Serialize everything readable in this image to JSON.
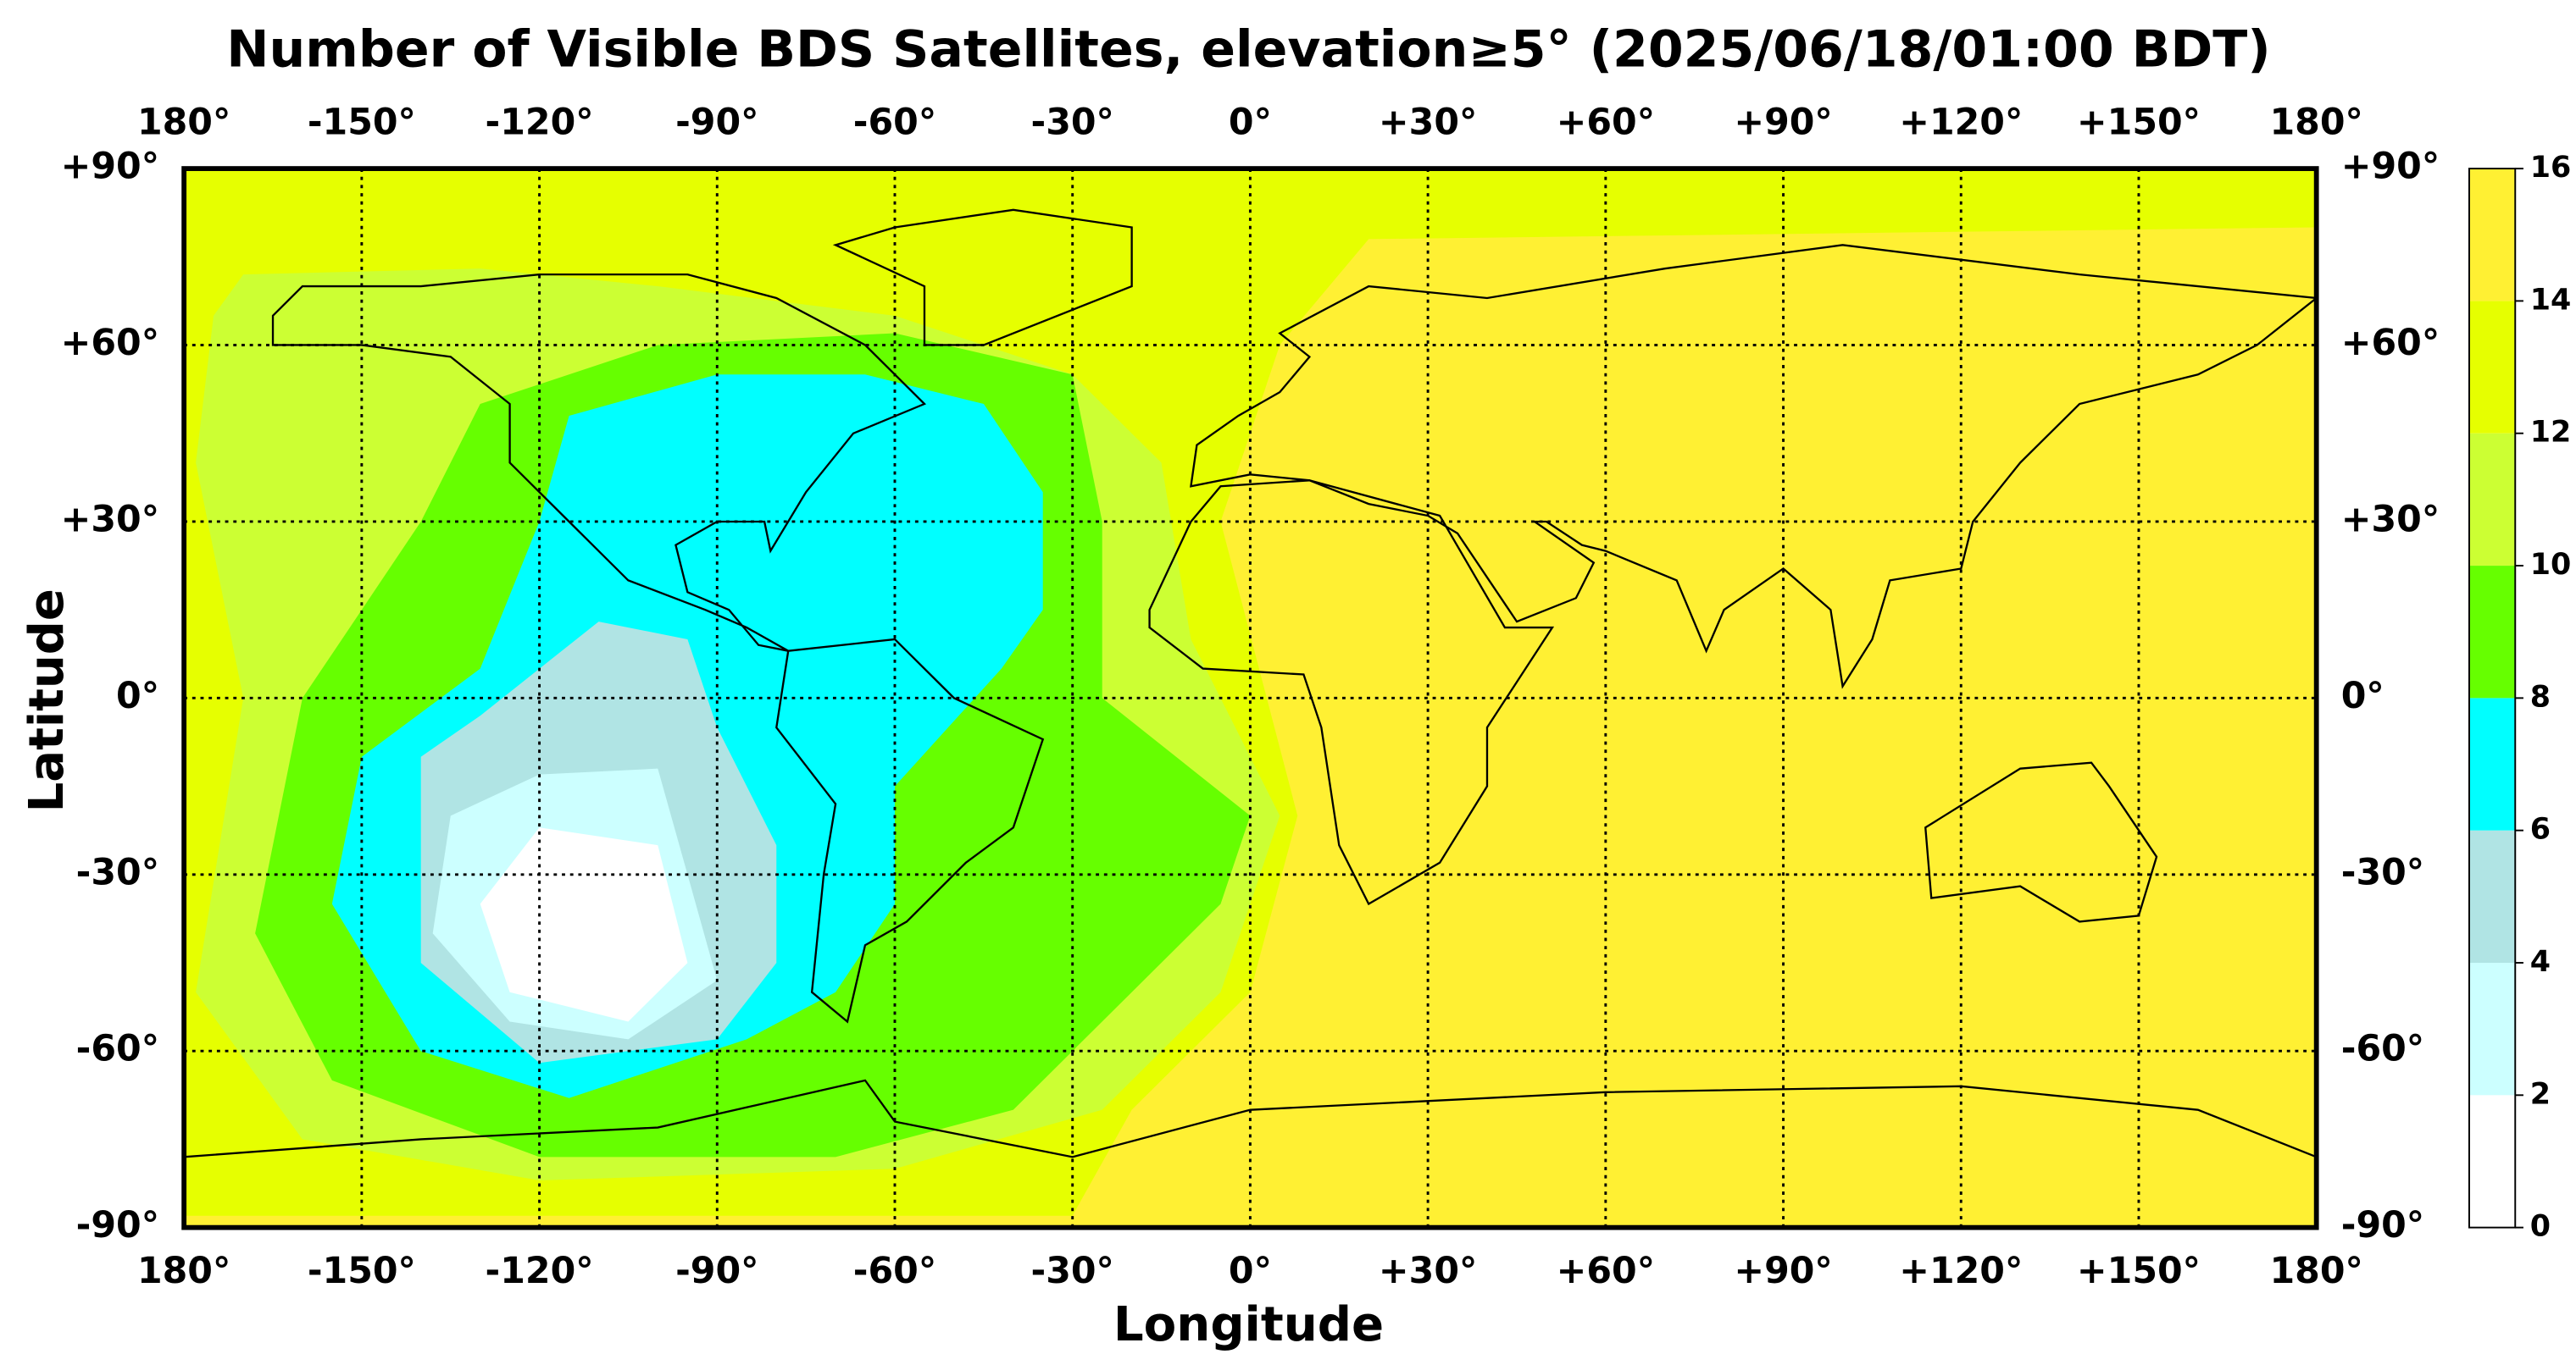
{
  "chart_data": {
    "type": "map",
    "title": "Number of Visible BDS Satellites, elevation≥5° (2025/06/18/01:00 BDT)",
    "xlabel": "Longitude",
    "ylabel": "Latitude",
    "xlim": [
      -180,
      180
    ],
    "ylim": [
      -90,
      90
    ],
    "xticks": [
      {
        "value": -180,
        "label": "180°"
      },
      {
        "value": -150,
        "label": "-150°"
      },
      {
        "value": -120,
        "label": "-120°"
      },
      {
        "value": -90,
        "label": "-90°"
      },
      {
        "value": -60,
        "label": "-60°"
      },
      {
        "value": -30,
        "label": "-30°"
      },
      {
        "value": 0,
        "label": "0°"
      },
      {
        "value": 30,
        "label": "+30°"
      },
      {
        "value": 60,
        "label": "+60°"
      },
      {
        "value": 90,
        "label": "+90°"
      },
      {
        "value": 120,
        "label": "+120°"
      },
      {
        "value": 150,
        "label": "+150°"
      },
      {
        "value": 180,
        "label": "180°"
      }
    ],
    "yticks": [
      {
        "value": 90,
        "label": "+90°"
      },
      {
        "value": 60,
        "label": "+60°"
      },
      {
        "value": 30,
        "label": "+30°"
      },
      {
        "value": 0,
        "label": "0°"
      },
      {
        "value": -30,
        "label": "-30°"
      },
      {
        "value": -60,
        "label": "-60°"
      },
      {
        "value": -90,
        "label": "-90°"
      }
    ],
    "grid": true,
    "colorbar": {
      "levels": [
        0,
        2,
        4,
        6,
        8,
        10,
        12,
        14,
        16
      ],
      "colors": [
        "#ffffff",
        "#ccffff",
        "#b0e4e4",
        "#00ffff",
        "#66ff00",
        "#ccff33",
        "#e6ff00",
        "#fff033"
      ]
    }
  }
}
